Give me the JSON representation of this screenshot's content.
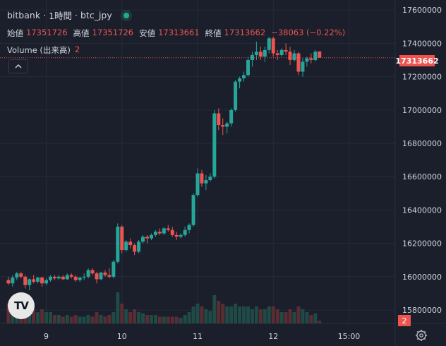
{
  "legend": {
    "exchange": "bitbank",
    "interval": "1時間",
    "symbol": "btc_jpy",
    "separator": "·",
    "open_label": "始値",
    "open_value": "17351726",
    "high_label": "高値",
    "high_value": "17351726",
    "low_label": "安値",
    "low_value": "17313661",
    "close_label": "終値",
    "close_value": "17313662",
    "change": "−38063 (−0.22%)",
    "volume_label": "Volume (出来高)",
    "volume_value": "2"
  },
  "logo_text": "TV",
  "colors": {
    "up": "#26a69a",
    "down": "#ef5350",
    "up_volume": "#1f4a46",
    "down_volume": "#5a2d33",
    "background": "#1a1f2b",
    "grid": "#262b38"
  },
  "chart_data": {
    "type": "candlestick",
    "title": "",
    "y_axis": {
      "ticks": [
        15800000,
        16000000,
        16200000,
        16400000,
        16600000,
        16800000,
        17000000,
        17200000,
        17400000,
        17600000
      ],
      "tick_labels": [
        "15800000",
        "16000000",
        "16200000",
        "16400000",
        "16600000",
        "16800000",
        "17000000",
        "17200000",
        "17400000",
        "17600000"
      ],
      "range": [
        15720000,
        17660000
      ]
    },
    "x_axis": {
      "ticks": [
        9,
        27,
        45,
        63,
        81
      ],
      "tick_labels": [
        "9",
        "10",
        "11",
        "12",
        "15:00"
      ],
      "range": [
        -2,
        92
      ]
    },
    "last_price": 17313662,
    "last_price_label": "17313662",
    "current_volume": "2",
    "grid": true,
    "candles": [
      [
        15980000,
        16000000,
        15950000,
        15960000,
        0.35
      ],
      [
        15960000,
        16010000,
        15940000,
        15995000,
        0.25
      ],
      [
        15995000,
        16030000,
        15980000,
        16020000,
        0.3
      ],
      [
        16020000,
        16030000,
        15990000,
        16000000,
        0.2
      ],
      [
        16000000,
        16010000,
        15930000,
        15950000,
        0.45
      ],
      [
        15950000,
        15990000,
        15920000,
        15985000,
        0.3
      ],
      [
        15985000,
        16010000,
        15960000,
        15970000,
        0.25
      ],
      [
        15970000,
        16000000,
        15960000,
        15995000,
        0.2
      ],
      [
        15995000,
        16000000,
        15940000,
        15960000,
        0.25
      ],
      [
        15960000,
        15990000,
        15950000,
        15980000,
        0.2
      ],
      [
        15980000,
        16010000,
        15970000,
        16000000,
        0.2
      ],
      [
        16000000,
        16010000,
        15980000,
        15990000,
        0.15
      ],
      [
        15990000,
        16010000,
        15980000,
        16000000,
        0.15
      ],
      [
        16000000,
        16010000,
        15980000,
        15985000,
        0.12
      ],
      [
        15985000,
        16020000,
        15980000,
        16010000,
        0.15
      ],
      [
        16010000,
        16020000,
        15990000,
        16000000,
        0.12
      ],
      [
        16000000,
        16010000,
        15970000,
        15980000,
        0.15
      ],
      [
        15980000,
        16000000,
        15970000,
        15995000,
        0.12
      ],
      [
        15995000,
        16020000,
        15980000,
        16000000,
        0.12
      ],
      [
        16000000,
        16050000,
        15990000,
        16040000,
        0.15
      ],
      [
        16040000,
        16050000,
        16010000,
        16020000,
        0.12
      ],
      [
        16020000,
        16030000,
        15960000,
        15985000,
        0.2
      ],
      [
        15985000,
        16030000,
        15980000,
        16025000,
        0.15
      ],
      [
        16025000,
        16040000,
        16000000,
        16010000,
        0.12
      ],
      [
        16010000,
        16050000,
        15990000,
        16000000,
        0.15
      ],
      [
        16000000,
        16100000,
        15990000,
        16090000,
        0.2
      ],
      [
        16090000,
        16320000,
        16080000,
        16300000,
        0.55
      ],
      [
        16300000,
        16310000,
        16140000,
        16160000,
        0.35
      ],
      [
        16160000,
        16220000,
        16150000,
        16210000,
        0.25
      ],
      [
        16210000,
        16230000,
        16170000,
        16190000,
        0.2
      ],
      [
        16190000,
        16200000,
        16130000,
        16150000,
        0.25
      ],
      [
        16150000,
        16220000,
        16140000,
        16210000,
        0.2
      ],
      [
        16210000,
        16250000,
        16200000,
        16240000,
        0.18
      ],
      [
        16240000,
        16250000,
        16200000,
        16230000,
        0.15
      ],
      [
        16230000,
        16260000,
        16220000,
        16250000,
        0.15
      ],
      [
        16250000,
        16280000,
        16240000,
        16270000,
        0.15
      ],
      [
        16270000,
        16290000,
        16250000,
        16260000,
        0.12
      ],
      [
        16260000,
        16300000,
        16250000,
        16290000,
        0.12
      ],
      [
        16290000,
        16310000,
        16270000,
        16280000,
        0.12
      ],
      [
        16280000,
        16300000,
        16240000,
        16250000,
        0.12
      ],
      [
        16250000,
        16270000,
        16220000,
        16240000,
        0.12
      ],
      [
        16240000,
        16260000,
        16230000,
        16250000,
        0.1
      ],
      [
        16250000,
        16300000,
        16240000,
        16280000,
        0.15
      ],
      [
        16280000,
        16320000,
        16260000,
        16310000,
        0.2
      ],
      [
        16310000,
        16500000,
        16300000,
        16490000,
        0.3
      ],
      [
        16490000,
        16650000,
        16480000,
        16620000,
        0.35
      ],
      [
        16620000,
        16640000,
        16540000,
        16560000,
        0.3
      ],
      [
        16560000,
        16610000,
        16520000,
        16580000,
        0.25
      ],
      [
        16580000,
        16620000,
        16570000,
        16600000,
        0.22
      ],
      [
        16600000,
        17000000,
        16590000,
        16980000,
        0.5
      ],
      [
        16980000,
        17010000,
        16880000,
        16910000,
        0.4
      ],
      [
        16910000,
        16950000,
        16850000,
        16900000,
        0.35
      ],
      [
        16900000,
        16930000,
        16860000,
        16920000,
        0.3
      ],
      [
        16920000,
        17010000,
        16900000,
        17000000,
        0.3
      ],
      [
        17000000,
        17180000,
        16990000,
        17170000,
        0.35
      ],
      [
        17170000,
        17200000,
        17130000,
        17190000,
        0.3
      ],
      [
        17190000,
        17230000,
        17170000,
        17210000,
        0.3
      ],
      [
        17210000,
        17320000,
        17200000,
        17300000,
        0.3
      ],
      [
        17300000,
        17350000,
        17260000,
        17330000,
        0.25
      ],
      [
        17330000,
        17410000,
        17300000,
        17350000,
        0.3
      ],
      [
        17350000,
        17380000,
        17300000,
        17320000,
        0.25
      ],
      [
        17320000,
        17380000,
        17290000,
        17360000,
        0.25
      ],
      [
        17360000,
        17440000,
        17340000,
        17430000,
        0.3
      ],
      [
        17430000,
        17440000,
        17320000,
        17340000,
        0.3
      ],
      [
        17340000,
        17360000,
        17300000,
        17330000,
        0.25
      ],
      [
        17330000,
        17370000,
        17320000,
        17360000,
        0.2
      ],
      [
        17360000,
        17400000,
        17330000,
        17350000,
        0.2
      ],
      [
        17350000,
        17380000,
        17270000,
        17300000,
        0.25
      ],
      [
        17300000,
        17360000,
        17290000,
        17340000,
        0.2
      ],
      [
        17340000,
        17350000,
        17210000,
        17230000,
        0.3
      ],
      [
        17230000,
        17310000,
        17200000,
        17290000,
        0.25
      ],
      [
        17290000,
        17320000,
        17260000,
        17310000,
        0.2
      ],
      [
        17310000,
        17340000,
        17280000,
        17300000,
        0.15
      ],
      [
        17300000,
        17360000,
        17290000,
        17350000,
        0.18
      ],
      [
        17351726,
        17351726,
        17313661,
        17313662,
        0.05
      ]
    ]
  }
}
